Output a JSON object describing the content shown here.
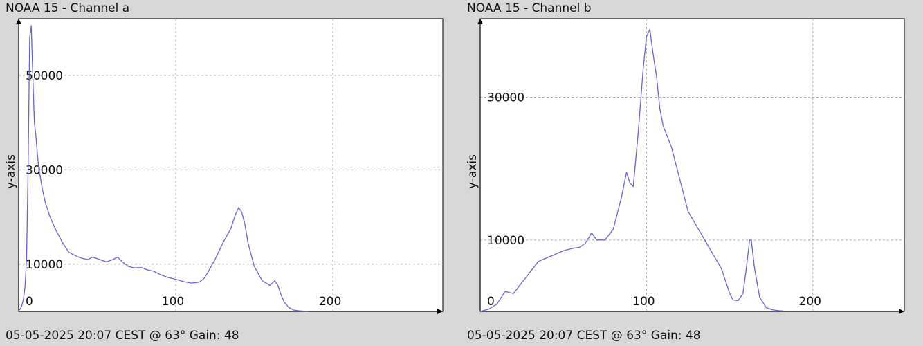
{
  "chart_data": [
    {
      "type": "line",
      "title": "NOAA 15 - Channel a",
      "ylabel": "y-axis",
      "footer": "05-05-2025 20:07 CEST @ 63° Gain: 48",
      "line_color": "#6666cc",
      "xlim": [
        0,
        270
      ],
      "ylim": [
        0,
        62000
      ],
      "x_ticks": [
        0,
        100,
        200
      ],
      "y_ticks": [
        10000,
        30000,
        50000
      ],
      "grid": true,
      "series": [
        {
          "x": [
            0,
            1,
            2,
            3,
            4,
            5,
            6,
            7,
            8,
            9,
            10,
            11,
            12,
            13,
            14,
            15,
            16,
            17,
            18,
            19,
            20,
            22,
            24,
            26,
            28,
            30,
            32,
            35,
            38,
            41,
            44,
            47,
            50,
            53,
            56,
            60,
            63,
            66,
            70,
            74,
            78,
            82,
            86,
            90,
            95,
            100,
            105,
            110,
            115,
            118,
            120,
            125,
            130,
            135,
            138,
            140,
            142,
            144,
            146,
            148,
            150,
            155,
            160,
            163,
            165,
            167,
            169,
            172,
            175,
            178,
            181,
            184
          ],
          "values": [
            200,
            500,
            1200,
            2500,
            5000,
            11000,
            30000,
            58000,
            60500,
            50000,
            40000,
            37000,
            33000,
            30000,
            28000,
            26000,
            24500,
            23000,
            22000,
            21000,
            20000,
            18500,
            17000,
            15800,
            14500,
            13500,
            12500,
            12000,
            11500,
            11200,
            11000,
            11500,
            11200,
            10800,
            10500,
            11000,
            11500,
            10500,
            9500,
            9200,
            9300,
            8800,
            8500,
            7800,
            7200,
            6800,
            6300,
            6000,
            6200,
            7000,
            8000,
            11000,
            14500,
            17500,
            20500,
            22000,
            21000,
            18500,
            14500,
            12000,
            9500,
            6500,
            5500,
            6500,
            5500,
            3500,
            2000,
            800,
            300,
            150,
            80,
            50
          ]
        }
      ]
    },
    {
      "type": "line",
      "title": "NOAA 15 - Channel b",
      "ylabel": "y-axis",
      "footer": "05-05-2025 20:07 CEST @ 63° Gain: 48",
      "line_color": "#6666cc",
      "xlim": [
        0,
        255
      ],
      "ylim": [
        0,
        41000
      ],
      "x_ticks": [
        0,
        100,
        200
      ],
      "y_ticks": [
        10000,
        30000
      ],
      "grid": true,
      "series": [
        {
          "x": [
            0,
            5,
            10,
            15,
            20,
            25,
            30,
            35,
            40,
            45,
            50,
            55,
            60,
            63,
            65,
            67,
            70,
            75,
            80,
            85,
            88,
            90,
            92,
            95,
            98,
            100,
            102,
            104,
            106,
            108,
            110,
            115,
            120,
            125,
            130,
            135,
            140,
            145,
            150,
            152,
            155,
            158,
            160,
            162,
            163,
            165,
            168,
            172,
            176,
            180,
            182
          ],
          "values": [
            0,
            300,
            1000,
            2800,
            2500,
            4000,
            5500,
            7000,
            7500,
            8000,
            8500,
            8800,
            9000,
            9500,
            10200,
            11000,
            10000,
            10000,
            11500,
            16000,
            19500,
            18000,
            17500,
            25000,
            34000,
            38500,
            39500,
            36000,
            33000,
            28500,
            26000,
            23000,
            18500,
            14000,
            12000,
            10000,
            8000,
            6000,
            2500,
            1600,
            1500,
            2500,
            6000,
            10000,
            10000,
            6000,
            2000,
            500,
            200,
            100,
            80
          ]
        }
      ]
    }
  ]
}
